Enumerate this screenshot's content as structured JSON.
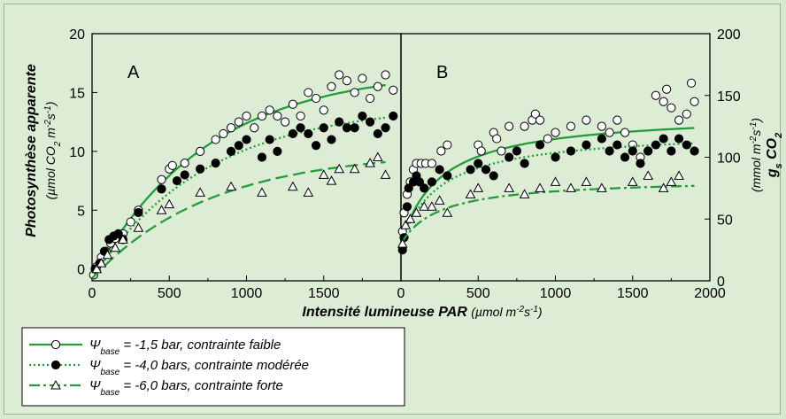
{
  "chart_data": {
    "type": "scatter",
    "xlabel": "Intensité lumineuse PAR",
    "xlabel_unit": "(µmol m-2s-1)",
    "ylabel_left": "Photosynthèse apparente",
    "ylabel_left_unit": "(µmol CO2 m-2s-1)",
    "ylabel_right": "gs CO2",
    "ylabel_right_unit": "(mmol m-2s-1)",
    "panels": [
      {
        "label": "A",
        "xlim": [
          0,
          2000
        ],
        "xticks": [
          "0",
          "500",
          "1000",
          "1500"
        ],
        "ylim": [
          -1,
          20
        ],
        "yticks": [
          "0",
          "5",
          "10",
          "15",
          "20"
        ],
        "series": [
          {
            "legend_index": 0,
            "marker": "open-circle",
            "line": "solid",
            "fit": {
              "model": "amax-exp",
              "amax": 17.0,
              "k": 0.00135,
              "r": -0.8
            },
            "points": [
              [
                10,
                -0.5
              ],
              [
                30,
                0.2
              ],
              [
                60,
                1
              ],
              [
                90,
                1.5
              ],
              [
                120,
                2.2
              ],
              [
                150,
                2.6
              ],
              [
                200,
                3
              ],
              [
                250,
                4
              ],
              [
                300,
                5
              ],
              [
                450,
                7.6
              ],
              [
                500,
                8.5
              ],
              [
                520,
                8.8
              ],
              [
                600,
                9
              ],
              [
                700,
                10
              ],
              [
                800,
                11
              ],
              [
                850,
                11.5
              ],
              [
                900,
                12
              ],
              [
                950,
                12.5
              ],
              [
                1000,
                13
              ],
              [
                1050,
                12
              ],
              [
                1100,
                13
              ],
              [
                1150,
                13.5
              ],
              [
                1200,
                13
              ],
              [
                1250,
                12.5
              ],
              [
                1300,
                14
              ],
              [
                1350,
                13
              ],
              [
                1400,
                15
              ],
              [
                1450,
                14.5
              ],
              [
                1500,
                13.5
              ],
              [
                1550,
                15.5
              ],
              [
                1600,
                16.5
              ],
              [
                1650,
                16
              ],
              [
                1700,
                15
              ],
              [
                1750,
                16.2
              ],
              [
                1800,
                14.5
              ],
              [
                1850,
                15.5
              ],
              [
                1900,
                16.5
              ],
              [
                1950,
                15.2
              ]
            ]
          },
          {
            "legend_index": 1,
            "marker": "filled-circle",
            "line": "dotted",
            "fit": {
              "model": "amax-exp",
              "amax": 14.0,
              "k": 0.00135,
              "r": -0.8
            },
            "points": [
              [
                20,
                0
              ],
              [
                50,
                0.5
              ],
              [
                80,
                1.5
              ],
              [
                110,
                2.5
              ],
              [
                140,
                2.8
              ],
              [
                170,
                3
              ],
              [
                200,
                2.5
              ],
              [
                300,
                4.8
              ],
              [
                450,
                6.8
              ],
              [
                550,
                7.5
              ],
              [
                600,
                8
              ],
              [
                700,
                8.5
              ],
              [
                800,
                9
              ],
              [
                900,
                10
              ],
              [
                950,
                10.5
              ],
              [
                1000,
                11
              ],
              [
                1100,
                9.5
              ],
              [
                1150,
                11
              ],
              [
                1200,
                10
              ],
              [
                1300,
                11.5
              ],
              [
                1350,
                12
              ],
              [
                1400,
                11.5
              ],
              [
                1450,
                10.5
              ],
              [
                1500,
                12
              ],
              [
                1550,
                11
              ],
              [
                1600,
                12.5
              ],
              [
                1650,
                12
              ],
              [
                1700,
                12
              ],
              [
                1750,
                13
              ],
              [
                1800,
                12.5
              ],
              [
                1850,
                11.5
              ],
              [
                1900,
                12
              ],
              [
                1950,
                13
              ]
            ]
          },
          {
            "legend_index": 2,
            "marker": "open-triangle",
            "line": "dashed",
            "fit": {
              "model": "amax-exp",
              "amax": 10.0,
              "k": 0.0013,
              "r": -0.8
            },
            "points": [
              [
                30,
                0
              ],
              [
                60,
                0.5
              ],
              [
                100,
                1.2
              ],
              [
                150,
                1.8
              ],
              [
                200,
                2.5
              ],
              [
                300,
                3.5
              ],
              [
                450,
                5
              ],
              [
                500,
                5.5
              ],
              [
                700,
                6.5
              ],
              [
                900,
                7
              ],
              [
                1100,
                6.5
              ],
              [
                1300,
                7
              ],
              [
                1400,
                6.5
              ],
              [
                1500,
                8
              ],
              [
                1550,
                7.5
              ],
              [
                1600,
                8.5
              ],
              [
                1700,
                8.5
              ],
              [
                1800,
                9
              ],
              [
                1850,
                9.5
              ],
              [
                1900,
                8
              ]
            ]
          }
        ]
      },
      {
        "label": "B",
        "xlim": [
          0,
          2000
        ],
        "xticks": [
          "0",
          "500",
          "1000",
          "1500",
          "2000"
        ],
        "ylim": [
          0,
          200
        ],
        "yticks": [
          "0",
          "50",
          "100",
          "150",
          "200"
        ],
        "series": [
          {
            "legend_index": 0,
            "marker": "open-circle",
            "line": "solid",
            "fit": {
              "model": "rect-hyperbola",
              "g0": 30,
              "gmax": 106,
              "k": 250
            },
            "points": [
              [
                10,
                40
              ],
              [
                20,
                55
              ],
              [
                40,
                70
              ],
              [
                60,
                80
              ],
              [
                80,
                90
              ],
              [
                100,
                95
              ],
              [
                130,
                95
              ],
              [
                160,
                95
              ],
              [
                200,
                95
              ],
              [
                260,
                105
              ],
              [
                300,
                110
              ],
              [
                500,
                110
              ],
              [
                520,
                105
              ],
              [
                600,
                120
              ],
              [
                620,
                115
              ],
              [
                650,
                105
              ],
              [
                700,
                125
              ],
              [
                800,
                125
              ],
              [
                850,
                130
              ],
              [
                870,
                135
              ],
              [
                900,
                130
              ],
              [
                950,
                115
              ],
              [
                1000,
                120
              ],
              [
                1100,
                125
              ],
              [
                1200,
                130
              ],
              [
                1300,
                125
              ],
              [
                1350,
                120
              ],
              [
                1400,
                130
              ],
              [
                1450,
                120
              ],
              [
                1500,
                110
              ],
              [
                1550,
                100
              ],
              [
                1600,
                105
              ],
              [
                1650,
                150
              ],
              [
                1700,
                145
              ],
              [
                1720,
                155
              ],
              [
                1750,
                140
              ],
              [
                1800,
                130
              ],
              [
                1850,
                135
              ],
              [
                1880,
                160
              ],
              [
                1900,
                145
              ]
            ]
          },
          {
            "legend_index": 1,
            "marker": "filled-circle",
            "line": "dotted",
            "fit": {
              "model": "rect-hyperbola",
              "g0": 30,
              "gmax": 92,
              "k": 250
            },
            "points": [
              [
                10,
                25
              ],
              [
                20,
                35
              ],
              [
                40,
                60
              ],
              [
                50,
                75
              ],
              [
                80,
                80
              ],
              [
                100,
                85
              ],
              [
                120,
                80
              ],
              [
                150,
                75
              ],
              [
                200,
                80
              ],
              [
                250,
                90
              ],
              [
                300,
                85
              ],
              [
                450,
                90
              ],
              [
                500,
                95
              ],
              [
                550,
                90
              ],
              [
                600,
                85
              ],
              [
                700,
                100
              ],
              [
                750,
                105
              ],
              [
                800,
                95
              ],
              [
                900,
                110
              ],
              [
                1000,
                100
              ],
              [
                1100,
                105
              ],
              [
                1200,
                110
              ],
              [
                1300,
                115
              ],
              [
                1350,
                105
              ],
              [
                1400,
                110
              ],
              [
                1450,
                100
              ],
              [
                1500,
                105
              ],
              [
                1550,
                95
              ],
              [
                1600,
                105
              ],
              [
                1650,
                110
              ],
              [
                1700,
                115
              ],
              [
                1750,
                105
              ],
              [
                1800,
                115
              ],
              [
                1850,
                110
              ],
              [
                1900,
                105
              ]
            ]
          },
          {
            "legend_index": 2,
            "marker": "open-triangle",
            "line": "dash-dot",
            "fit": {
              "model": "rect-hyperbola",
              "g0": 30,
              "gmax": 53,
              "k": 250
            },
            "points": [
              [
                10,
                30
              ],
              [
                30,
                45
              ],
              [
                60,
                50
              ],
              [
                100,
                55
              ],
              [
                150,
                60
              ],
              [
                200,
                60
              ],
              [
                250,
                65
              ],
              [
                300,
                55
              ],
              [
                450,
                70
              ],
              [
                500,
                75
              ],
              [
                700,
                75
              ],
              [
                800,
                70
              ],
              [
                900,
                75
              ],
              [
                1000,
                80
              ],
              [
                1100,
                75
              ],
              [
                1200,
                80
              ],
              [
                1300,
                75
              ],
              [
                1500,
                80
              ],
              [
                1600,
                85
              ],
              [
                1700,
                75
              ],
              [
                1750,
                80
              ],
              [
                1800,
                85
              ]
            ]
          }
        ]
      }
    ],
    "legend": {
      "placement": "bottom-left",
      "entries": [
        {
          "symbol": "Ψ",
          "subscript": "base",
          "rest": " = -1,5 bar, contrainte faible"
        },
        {
          "symbol": "Ψ",
          "subscript": "base",
          "rest": " = -4,0 bars, contrainte modérée"
        },
        {
          "symbol": "Ψ",
          "subscript": "base",
          "rest": " = -6,0 bars, contrainte forte"
        }
      ]
    },
    "colors": {
      "line": "#1f9e3a",
      "background": "#ddecd5",
      "marker_edge": "#000000"
    }
  }
}
